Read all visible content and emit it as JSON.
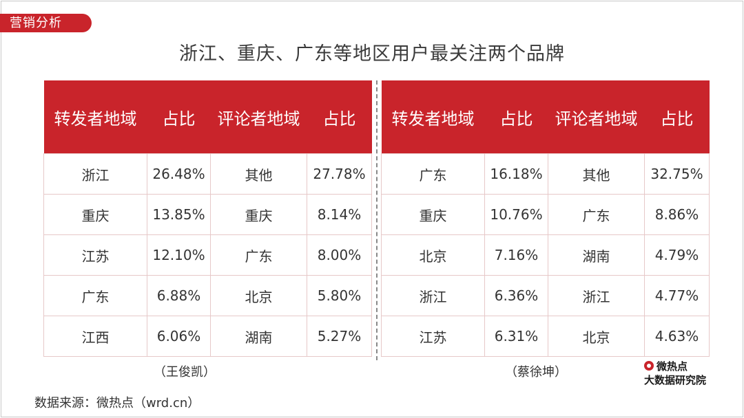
{
  "tag": "营销分析",
  "title": "浙江、重庆、广东等地区用户最关注两个品牌",
  "headers": [
    "转发者地域",
    "占比",
    "评论者地域",
    "占比"
  ],
  "left_table": {
    "rows": [
      [
        "浙江",
        "26.48%",
        "其他",
        "27.78%"
      ],
      [
        "重庆",
        "13.85%",
        "重庆",
        "8.14%"
      ],
      [
        "江苏",
        "12.10%",
        "广东",
        "8.00%"
      ],
      [
        "广东",
        "6.88%",
        "北京",
        "5.80%"
      ],
      [
        "江西",
        "6.06%",
        "湖南",
        "5.27%"
      ]
    ],
    "caption": "（王俊凯）"
  },
  "right_table": {
    "rows": [
      [
        "广东",
        "16.18%",
        "其他",
        "32.75%"
      ],
      [
        "重庆",
        "10.76%",
        "广东",
        "8.86%"
      ],
      [
        "北京",
        "7.16%",
        "湖南",
        "4.79%"
      ],
      [
        "浙江",
        "6.36%",
        "浙江",
        "4.77%"
      ],
      [
        "江苏",
        "6.31%",
        "北京",
        "4.63%"
      ]
    ],
    "caption": "（蔡徐坤）"
  },
  "source": "数据来源：微热点（wrd.cn）",
  "logo": {
    "line1": "微热点",
    "line2": "大数据研究院",
    "icon": "eye-icon"
  },
  "colors": {
    "accent": "#c9242b",
    "text": "#333333"
  }
}
